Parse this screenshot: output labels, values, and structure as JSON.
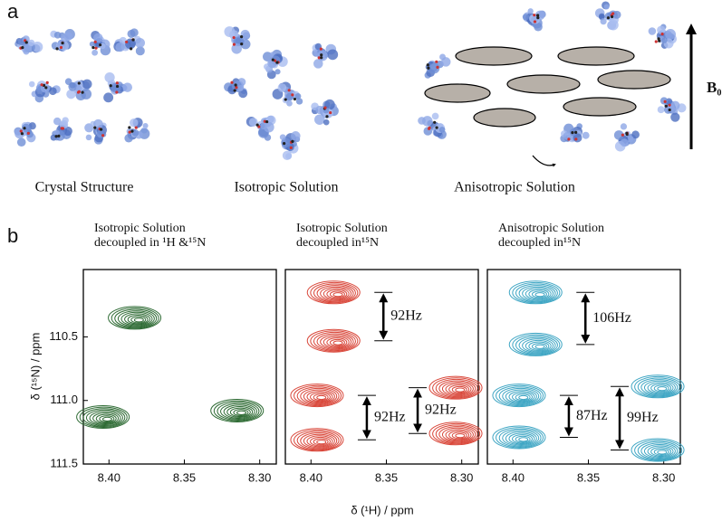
{
  "panel_labels": [
    "a",
    "b"
  ],
  "panel_a": {
    "captions": [
      "Crystal Structure",
      "Isotropic Solution",
      "Anisotropic Solution"
    ],
    "field_label": "B₀"
  },
  "y_label": "δ (¹⁵N) / ppm",
  "x_label": "δ (¹H) / ppm",
  "chart_data": [
    {
      "type": "contour",
      "title_lines": [
        "Isotropic Solution",
        "decoupled in ¹H &¹⁵N"
      ],
      "color": "#2e6b34",
      "x": [
        8.383,
        8.404,
        8.315
      ],
      "y": [
        110.35,
        111.13,
        111.08
      ],
      "xlim": [
        8.417,
        8.289
      ],
      "ylim": [
        109.97,
        111.5
      ],
      "xticks": [
        {
          "value": 8.4,
          "label": "8.40"
        },
        {
          "value": 8.35,
          "label": "8.35"
        },
        {
          "value": 8.3,
          "label": "8.30"
        }
      ],
      "yticks": [
        110.5,
        {
          "value": 111.0,
          "label": "111.0"
        },
        111.5
      ],
      "annotations": []
    },
    {
      "type": "contour",
      "title_lines": [
        "Isotropic Solution",
        "decoupled in¹⁵N"
      ],
      "color": "#d9473a",
      "x": [
        8.385,
        8.385,
        8.396,
        8.396,
        8.304,
        8.304
      ],
      "y": [
        110.15,
        110.53,
        110.96,
        111.31,
        110.9,
        111.26
      ],
      "xlim": [
        8.417,
        8.289
      ],
      "ylim": [
        109.97,
        111.5
      ],
      "xticks": [
        {
          "value": 8.4,
          "label": "8.40"
        },
        {
          "value": 8.35,
          "label": "8.35"
        },
        {
          "value": 8.3,
          "label": "8.30"
        }
      ],
      "annotations": [
        "92Hz",
        "92Hz",
        "92Hz"
      ]
    },
    {
      "type": "contour",
      "title_lines": [
        "Anisotropic Solution",
        "decoupled in¹⁵N"
      ],
      "color": "#3fa6c4",
      "x": [
        8.385,
        8.385,
        8.396,
        8.396,
        8.304,
        8.304
      ],
      "y": [
        110.15,
        110.56,
        110.96,
        111.29,
        110.89,
        111.39
      ],
      "xlim": [
        8.417,
        8.289
      ],
      "ylim": [
        109.97,
        111.5
      ],
      "xticks": [
        {
          "value": 8.4,
          "label": "8.40"
        },
        {
          "value": 8.35,
          "label": "8.35"
        },
        {
          "value": 8.3,
          "label": "8.30"
        }
      ],
      "annotations": [
        "106Hz",
        "87Hz",
        "99Hz"
      ]
    }
  ]
}
